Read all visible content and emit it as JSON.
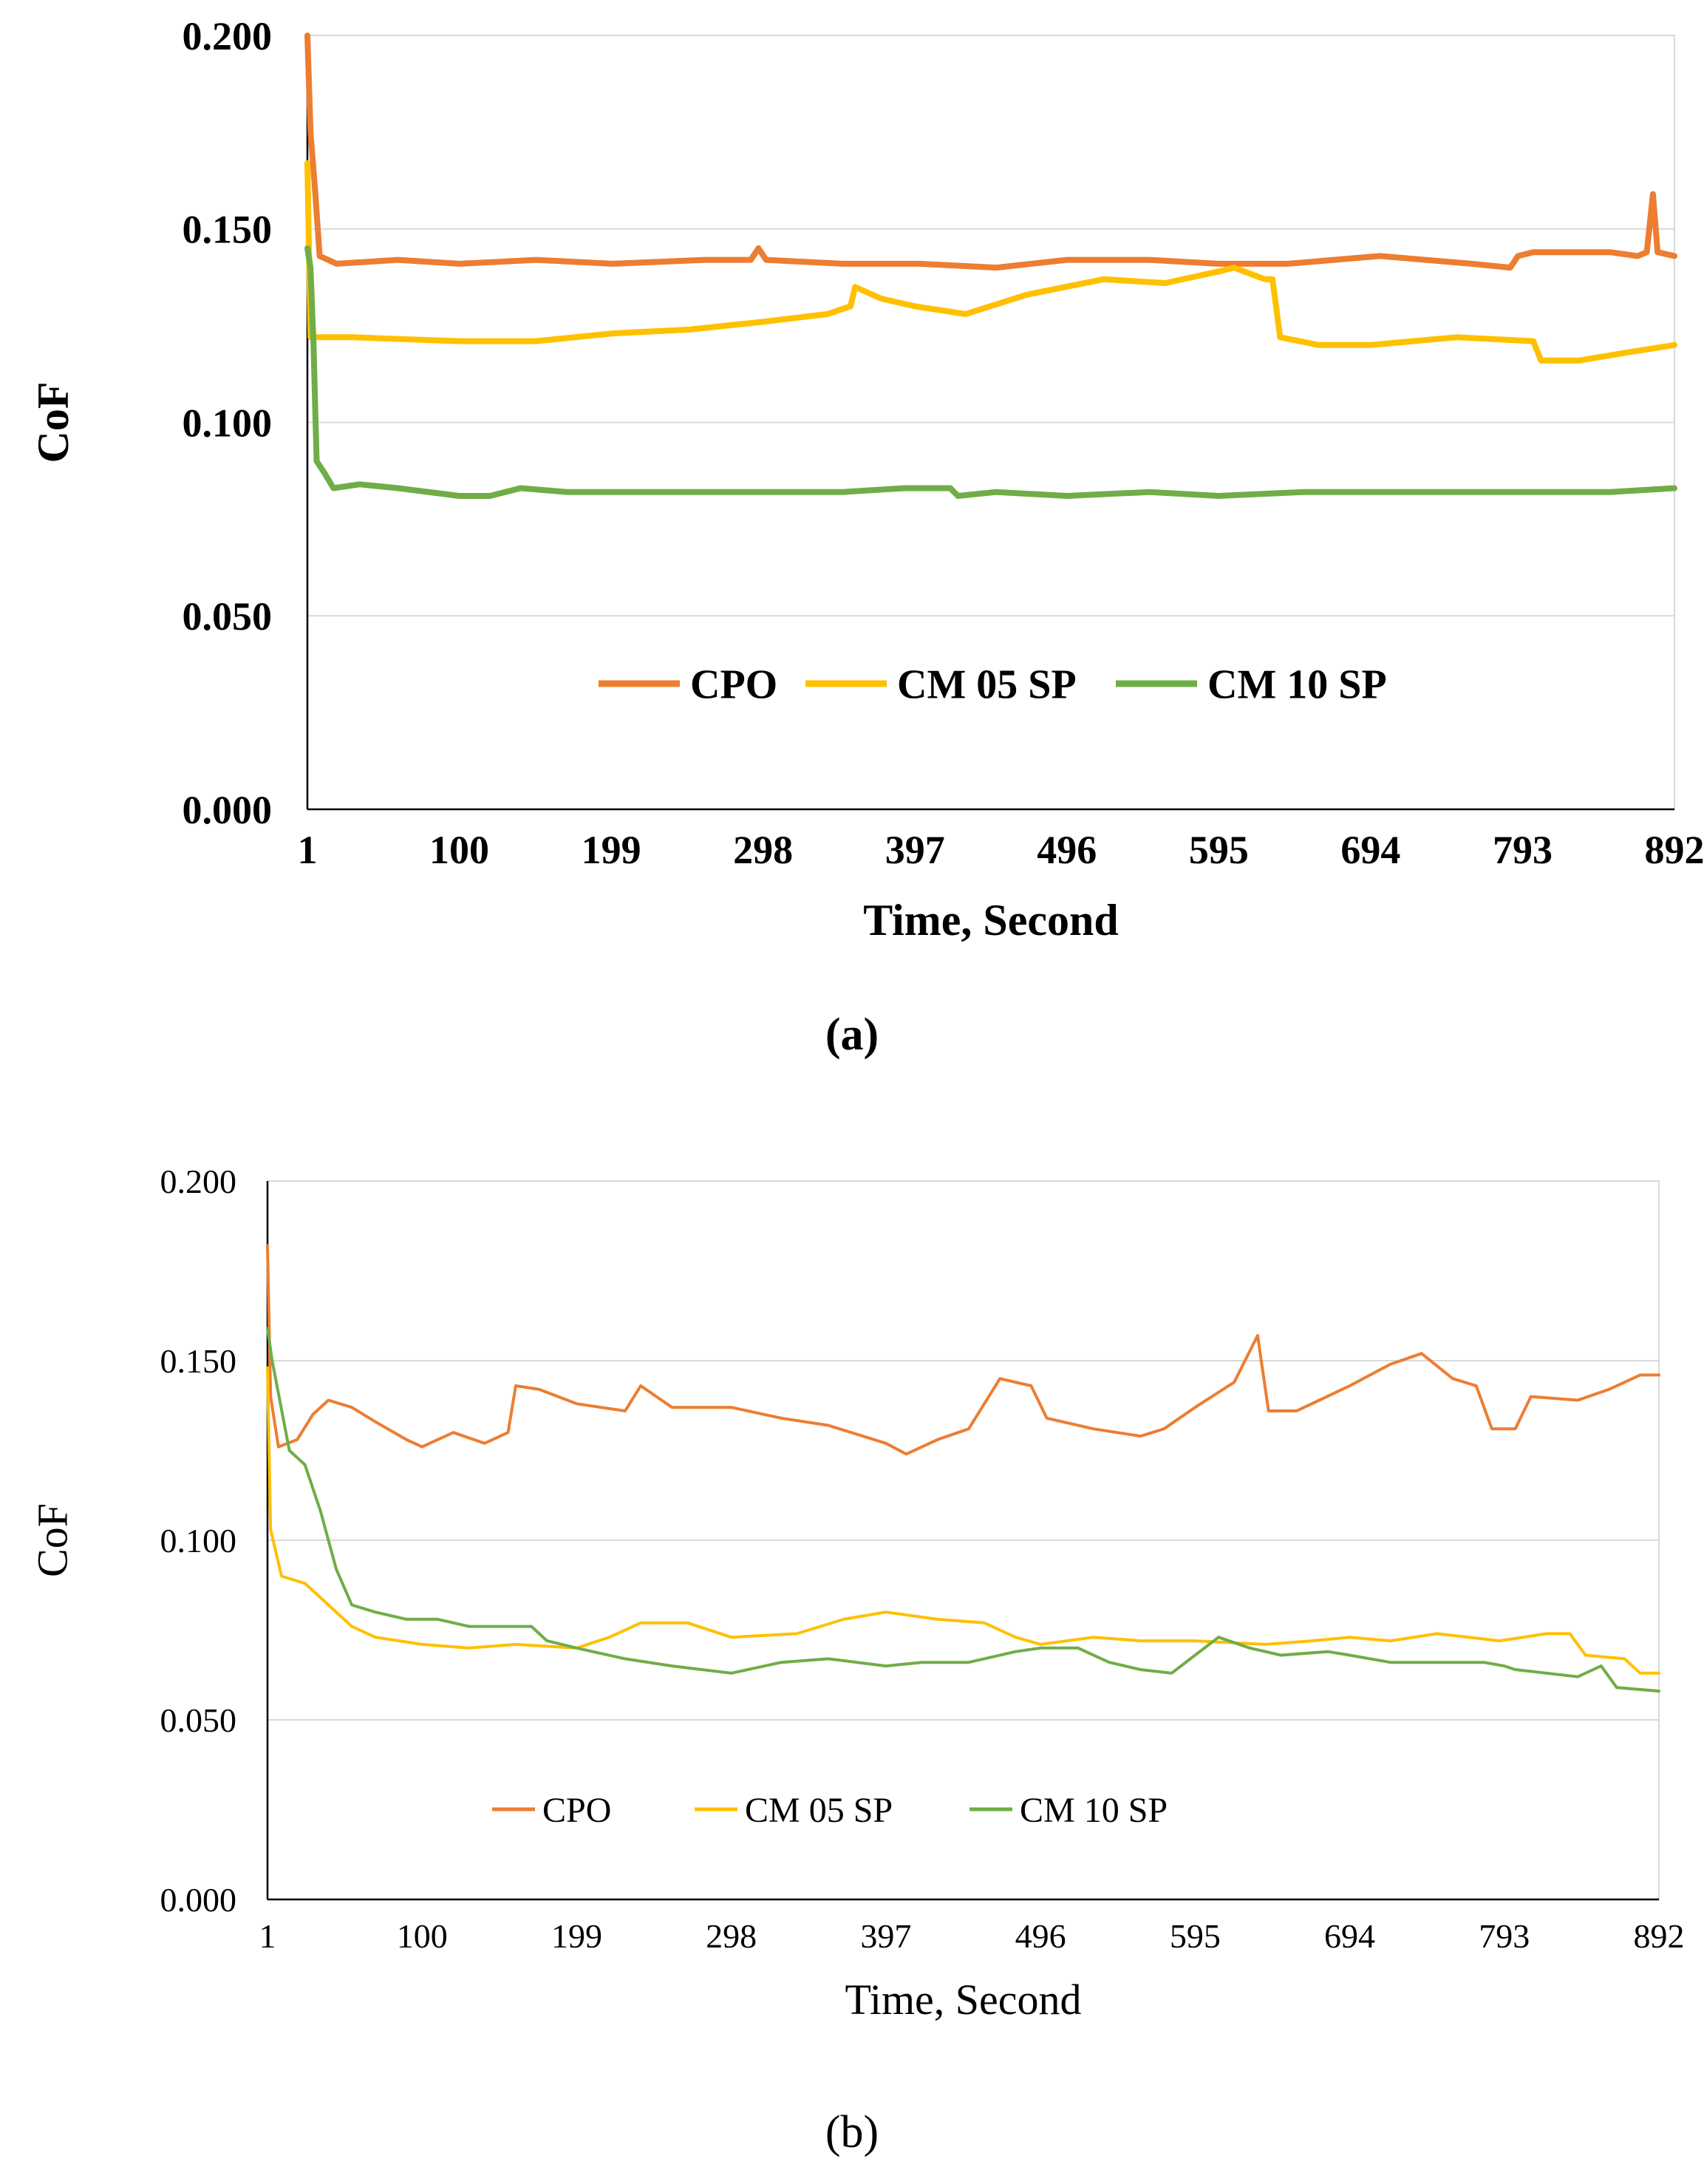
{
  "chart_data": [
    {
      "type": "line",
      "panel_label": "a",
      "caption": "(a)",
      "xlabel": "Time, Second",
      "ylabel": "CoF",
      "x_ticks": [
        "1",
        "100",
        "199",
        "298",
        "397",
        "496",
        "595",
        "694",
        "793",
        "892"
      ],
      "y_ticks": [
        "0.000",
        "0.050",
        "0.100",
        "0.150",
        "0.200"
      ],
      "xlim": [
        1,
        892
      ],
      "ylim": [
        0,
        0.2
      ],
      "grid": "horizontal",
      "legend_position": "bottom-center",
      "series": [
        {
          "name": "CPO",
          "color": "#ED7D31",
          "points": [
            [
              1,
              0.2
            ],
            [
              3,
              0.175
            ],
            [
              6,
              0.16
            ],
            [
              9,
              0.143
            ],
            [
              20,
              0.141
            ],
            [
              60,
              0.142
            ],
            [
              100,
              0.141
            ],
            [
              150,
              0.142
            ],
            [
              200,
              0.141
            ],
            [
              260,
              0.142
            ],
            [
              290,
              0.142
            ],
            [
              295,
              0.145
            ],
            [
              300,
              0.142
            ],
            [
              350,
              0.141
            ],
            [
              400,
              0.141
            ],
            [
              450,
              0.14
            ],
            [
              496,
              0.142
            ],
            [
              550,
              0.142
            ],
            [
              595,
              0.141
            ],
            [
              640,
              0.141
            ],
            [
              700,
              0.143
            ],
            [
              760,
              0.141
            ],
            [
              785,
              0.14
            ],
            [
              790,
              0.143
            ],
            [
              800,
              0.144
            ],
            [
              850,
              0.144
            ],
            [
              868,
              0.143
            ],
            [
              874,
              0.144
            ],
            [
              878,
              0.159
            ],
            [
              881,
              0.144
            ],
            [
              892,
              0.143
            ]
          ]
        },
        {
          "name": "CM 05 SP",
          "color": "#FFC000",
          "points": [
            [
              1,
              0.167
            ],
            [
              3,
              0.122
            ],
            [
              30,
              0.122
            ],
            [
              100,
              0.121
            ],
            [
              150,
              0.121
            ],
            [
              200,
              0.123
            ],
            [
              250,
              0.124
            ],
            [
              298,
              0.126
            ],
            [
              340,
              0.128
            ],
            [
              355,
              0.13
            ],
            [
              358,
              0.135
            ],
            [
              375,
              0.132
            ],
            [
              397,
              0.13
            ],
            [
              430,
              0.128
            ],
            [
              470,
              0.133
            ],
            [
              520,
              0.137
            ],
            [
              560,
              0.136
            ],
            [
              595,
              0.139
            ],
            [
              605,
              0.14
            ],
            [
              625,
              0.137
            ],
            [
              630,
              0.137
            ],
            [
              635,
              0.122
            ],
            [
              660,
              0.12
            ],
            [
              694,
              0.12
            ],
            [
              750,
              0.122
            ],
            [
              800,
              0.121
            ],
            [
              805,
              0.116
            ],
            [
              830,
              0.116
            ],
            [
              860,
              0.118
            ],
            [
              892,
              0.12
            ]
          ]
        },
        {
          "name": "CM 10 SP",
          "color": "#70AD47",
          "points": [
            [
              1,
              0.145
            ],
            [
              3,
              0.14
            ],
            [
              5,
              0.12
            ],
            [
              7,
              0.09
            ],
            [
              12,
              0.087
            ],
            [
              18,
              0.083
            ],
            [
              35,
              0.084
            ],
            [
              60,
              0.083
            ],
            [
              100,
              0.081
            ],
            [
              120,
              0.081
            ],
            [
              140,
              0.083
            ],
            [
              170,
              0.082
            ],
            [
              199,
              0.082
            ],
            [
              250,
              0.082
            ],
            [
              298,
              0.082
            ],
            [
              350,
              0.082
            ],
            [
              390,
              0.083
            ],
            [
              420,
              0.083
            ],
            [
              425,
              0.081
            ],
            [
              450,
              0.082
            ],
            [
              496,
              0.081
            ],
            [
              550,
              0.082
            ],
            [
              595,
              0.081
            ],
            [
              650,
              0.082
            ],
            [
              700,
              0.082
            ],
            [
              750,
              0.082
            ],
            [
              800,
              0.082
            ],
            [
              850,
              0.082
            ],
            [
              892,
              0.083
            ]
          ]
        }
      ]
    },
    {
      "type": "line",
      "panel_label": "b",
      "caption": "(b)",
      "xlabel": "Time, Second",
      "ylabel": "CoF",
      "x_ticks": [
        "1",
        "100",
        "199",
        "298",
        "397",
        "496",
        "595",
        "694",
        "793",
        "892"
      ],
      "y_ticks": [
        "0.000",
        "0.050",
        "0.100",
        "0.150",
        "0.200"
      ],
      "xlim": [
        1,
        892
      ],
      "ylim": [
        0,
        0.2
      ],
      "grid": "horizontal",
      "legend_position": "bottom-center",
      "series": [
        {
          "name": "CPO",
          "color": "#ED7D31",
          "points": [
            [
              1,
              0.182
            ],
            [
              3,
              0.14
            ],
            [
              8,
              0.126
            ],
            [
              20,
              0.128
            ],
            [
              30,
              0.135
            ],
            [
              40,
              0.139
            ],
            [
              55,
              0.137
            ],
            [
              70,
              0.133
            ],
            [
              90,
              0.128
            ],
            [
              100,
              0.126
            ],
            [
              120,
              0.13
            ],
            [
              140,
              0.127
            ],
            [
              155,
              0.13
            ],
            [
              160,
              0.143
            ],
            [
              175,
              0.142
            ],
            [
              199,
              0.138
            ],
            [
              230,
              0.136
            ],
            [
              240,
              0.143
            ],
            [
              260,
              0.137
            ],
            [
              298,
              0.137
            ],
            [
              330,
              0.134
            ],
            [
              360,
              0.132
            ],
            [
              397,
              0.127
            ],
            [
              410,
              0.124
            ],
            [
              430,
              0.128
            ],
            [
              450,
              0.131
            ],
            [
              470,
              0.145
            ],
            [
              490,
              0.143
            ],
            [
              500,
              0.134
            ],
            [
              530,
              0.131
            ],
            [
              560,
              0.129
            ],
            [
              575,
              0.131
            ],
            [
              595,
              0.137
            ],
            [
              620,
              0.144
            ],
            [
              635,
              0.157
            ],
            [
              642,
              0.136
            ],
            [
              660,
              0.136
            ],
            [
              694,
              0.143
            ],
            [
              720,
              0.149
            ],
            [
              740,
              0.152
            ],
            [
              760,
              0.145
            ],
            [
              775,
              0.143
            ],
            [
              785,
              0.131
            ],
            [
              800,
              0.131
            ],
            [
              810,
              0.14
            ],
            [
              840,
              0.139
            ],
            [
              860,
              0.142
            ],
            [
              880,
              0.146
            ],
            [
              892,
              0.146
            ]
          ]
        },
        {
          "name": "CM 05 SP",
          "color": "#FFC000",
          "points": [
            [
              1,
              0.148
            ],
            [
              3,
              0.103
            ],
            [
              10,
              0.09
            ],
            [
              25,
              0.088
            ],
            [
              40,
              0.082
            ],
            [
              55,
              0.076
            ],
            [
              70,
              0.073
            ],
            [
              100,
              0.071
            ],
            [
              130,
              0.07
            ],
            [
              160,
              0.071
            ],
            [
              199,
              0.07
            ],
            [
              220,
              0.073
            ],
            [
              240,
              0.077
            ],
            [
              270,
              0.077
            ],
            [
              298,
              0.073
            ],
            [
              340,
              0.074
            ],
            [
              370,
              0.078
            ],
            [
              397,
              0.08
            ],
            [
              430,
              0.078
            ],
            [
              460,
              0.077
            ],
            [
              480,
              0.073
            ],
            [
              496,
              0.071
            ],
            [
              530,
              0.073
            ],
            [
              560,
              0.072
            ],
            [
              595,
              0.072
            ],
            [
              640,
              0.071
            ],
            [
              670,
              0.072
            ],
            [
              694,
              0.073
            ],
            [
              720,
              0.072
            ],
            [
              750,
              0.074
            ],
            [
              790,
              0.072
            ],
            [
              820,
              0.074
            ],
            [
              835,
              0.074
            ],
            [
              845,
              0.068
            ],
            [
              870,
              0.067
            ],
            [
              880,
              0.063
            ],
            [
              892,
              0.063
            ]
          ]
        },
        {
          "name": "CM 10 SP",
          "color": "#70AD47",
          "points": [
            [
              1,
              0.159
            ],
            [
              4,
              0.15
            ],
            [
              15,
              0.125
            ],
            [
              25,
              0.121
            ],
            [
              35,
              0.108
            ],
            [
              45,
              0.092
            ],
            [
              55,
              0.082
            ],
            [
              70,
              0.08
            ],
            [
              90,
              0.078
            ],
            [
              110,
              0.078
            ],
            [
              130,
              0.076
            ],
            [
              150,
              0.076
            ],
            [
              170,
              0.076
            ],
            [
              180,
              0.072
            ],
            [
              199,
              0.07
            ],
            [
              230,
              0.067
            ],
            [
              260,
              0.065
            ],
            [
              298,
              0.063
            ],
            [
              330,
              0.066
            ],
            [
              360,
              0.067
            ],
            [
              397,
              0.065
            ],
            [
              420,
              0.066
            ],
            [
              450,
              0.066
            ],
            [
              480,
              0.069
            ],
            [
              496,
              0.07
            ],
            [
              520,
              0.07
            ],
            [
              540,
              0.066
            ],
            [
              560,
              0.064
            ],
            [
              580,
              0.063
            ],
            [
              595,
              0.068
            ],
            [
              610,
              0.073
            ],
            [
              630,
              0.07
            ],
            [
              650,
              0.068
            ],
            [
              680,
              0.069
            ],
            [
              694,
              0.068
            ],
            [
              720,
              0.066
            ],
            [
              740,
              0.066
            ],
            [
              760,
              0.066
            ],
            [
              780,
              0.066
            ],
            [
              793,
              0.065
            ],
            [
              800,
              0.064
            ],
            [
              820,
              0.063
            ],
            [
              840,
              0.062
            ],
            [
              855,
              0.065
            ],
            [
              865,
              0.059
            ],
            [
              892,
              0.058
            ]
          ]
        }
      ]
    }
  ]
}
